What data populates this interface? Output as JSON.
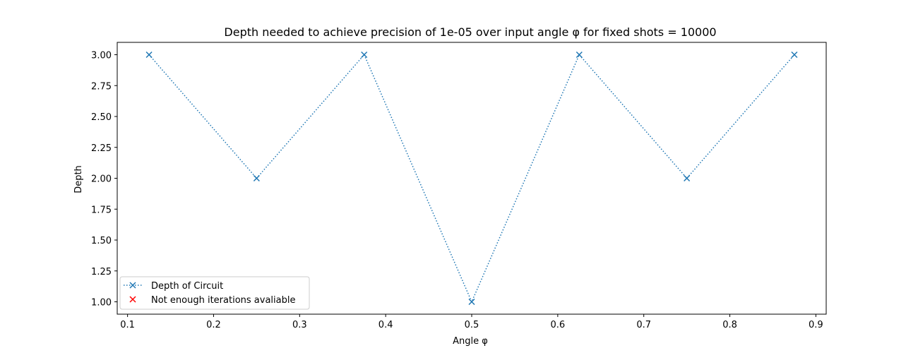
{
  "chart_data": {
    "type": "line",
    "title": "Depth needed to achieve precision of 1e-05 over input angle φ for fixed shots = 10000",
    "xlabel": "Angle φ",
    "ylabel": "Depth",
    "xlim": [
      0.088,
      0.912
    ],
    "ylim": [
      0.9,
      3.1
    ],
    "xticks": [
      0.1,
      0.2,
      0.3,
      0.4,
      0.5,
      0.6,
      0.7,
      0.8,
      0.9
    ],
    "xtick_labels": [
      "0.1",
      "0.2",
      "0.3",
      "0.4",
      "0.5",
      "0.6",
      "0.7",
      "0.8",
      "0.9"
    ],
    "yticks": [
      1.0,
      1.25,
      1.5,
      1.75,
      2.0,
      2.25,
      2.5,
      2.75,
      3.0
    ],
    "ytick_labels": [
      "1.00",
      "1.25",
      "1.50",
      "1.75",
      "2.00",
      "2.25",
      "2.50",
      "2.75",
      "3.00"
    ],
    "grid": false,
    "legend_position": "lower-left",
    "series": [
      {
        "name": "Depth of Circuit",
        "style": "dotted line with x markers",
        "color": "#1f77b4",
        "x": [
          0.125,
          0.25,
          0.375,
          0.5,
          0.625,
          0.75,
          0.875
        ],
        "y": [
          3,
          2,
          3,
          1,
          3,
          2,
          3
        ]
      },
      {
        "name": "Not enough iterations avaliable",
        "style": "x markers",
        "color": "#ff0000",
        "x": [],
        "y": []
      }
    ]
  }
}
